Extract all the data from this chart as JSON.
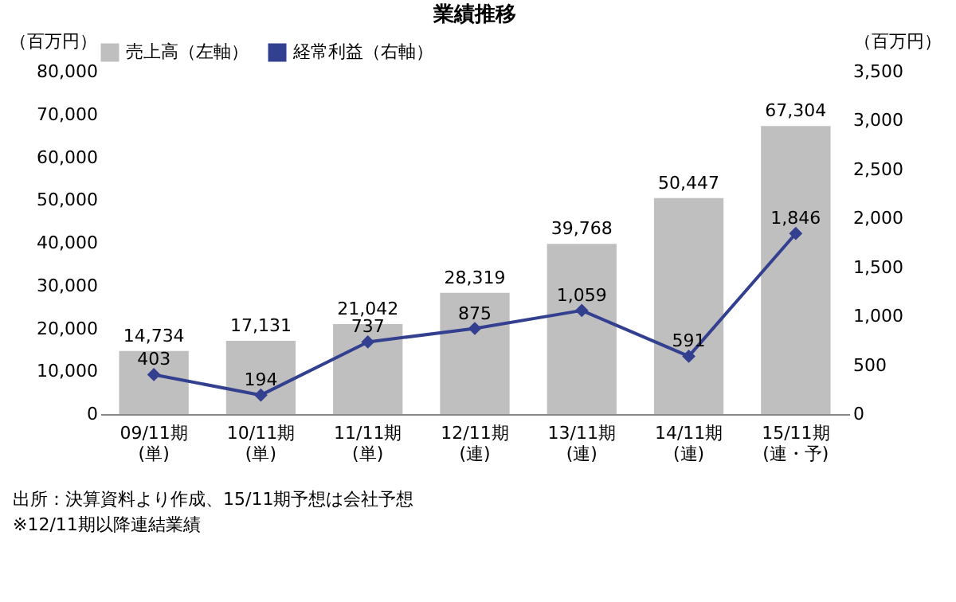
{
  "chart_data": {
    "type": "bar",
    "title": "業績推移",
    "categories": [
      "09/11期\n(単)",
      "10/11期\n(単)",
      "11/11期\n(単)",
      "12/11期\n(連)",
      "13/11期\n(連)",
      "14/11期\n(連)",
      "15/11期\n(連・予)"
    ],
    "series": [
      {
        "name": "売上高（左軸）",
        "color": "#bfbfbf",
        "values": [
          14734,
          17131,
          21042,
          28319,
          39768,
          50447,
          67304
        ],
        "value_labels": [
          "14,734",
          "17,131",
          "21,042",
          "28,319",
          "39,768",
          "50,447",
          "67,304"
        ]
      },
      {
        "name": "経常利益（右軸）",
        "type": "line",
        "axis": "y2",
        "color": "#333f8f",
        "marker": "diamond",
        "values": [
          403,
          194,
          737,
          875,
          1059,
          591,
          1846
        ],
        "value_labels": [
          "403",
          "194",
          "737",
          "875",
          "1,059",
          "591",
          "1,846"
        ]
      }
    ],
    "ylabel": "（百万円）",
    "y2label": "（百万円）",
    "ylim": [
      0,
      80000
    ],
    "yticks": [
      0,
      {
        "value": 10000,
        "label": "10,000"
      },
      {
        "value": 20000,
        "label": "20,000"
      },
      {
        "value": 30000,
        "label": "30,000"
      },
      {
        "value": 40000,
        "label": "40,000"
      },
      {
        "value": 50000,
        "label": "50,000"
      },
      {
        "value": 60000,
        "label": "60,000"
      },
      {
        "value": 70000,
        "label": "70,000"
      },
      {
        "value": 80000,
        "label": "80,000"
      }
    ],
    "y2lim": [
      0,
      3500
    ],
    "y2ticks": [
      0,
      500,
      {
        "value": 1000,
        "label": "1,000"
      },
      {
        "value": 1500,
        "label": "1,500"
      },
      {
        "value": 2000,
        "label": "2,000"
      },
      {
        "value": 2500,
        "label": "2,500"
      },
      {
        "value": 3000,
        "label": "3,000"
      },
      {
        "value": 3500,
        "label": "3,500"
      }
    ],
    "legend": "top",
    "annotations": [
      "出所：決算資料より作成、15/11期予想は会社予想",
      "※12/11期以降連結業績"
    ]
  }
}
